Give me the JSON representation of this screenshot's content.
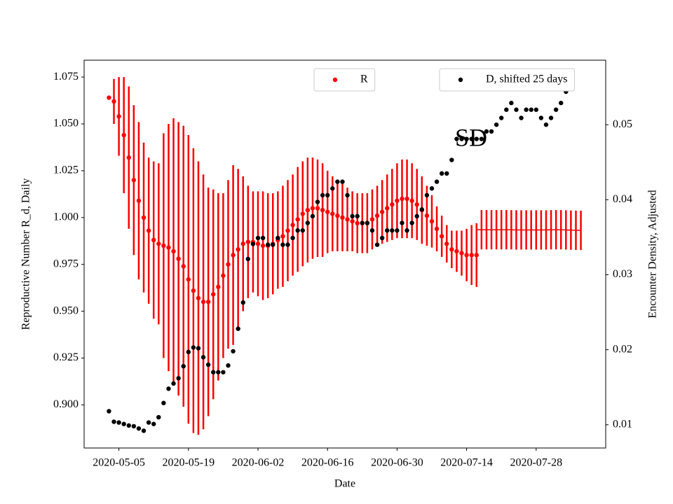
{
  "chart_data": {
    "type": "errorbar",
    "xlabel": "Date",
    "ylabel": "Reproductive Number R_d, Daily",
    "y2label": "Encounter Density, Adjusted",
    "annotations": [
      "SD"
    ],
    "x": [
      "2020-05-03",
      "2020-05-04",
      "2020-05-05",
      "2020-05-06",
      "2020-05-07",
      "2020-05-08",
      "2020-05-09",
      "2020-05-10",
      "2020-05-11",
      "2020-05-12",
      "2020-05-13",
      "2020-05-14",
      "2020-05-15",
      "2020-05-16",
      "2020-05-17",
      "2020-05-18",
      "2020-05-19",
      "2020-05-20",
      "2020-05-21",
      "2020-05-22",
      "2020-05-23",
      "2020-05-24",
      "2020-05-25",
      "2020-05-26",
      "2020-05-27",
      "2020-05-28",
      "2020-05-29",
      "2020-05-30",
      "2020-05-31",
      "2020-06-01",
      "2020-06-02",
      "2020-06-03",
      "2020-06-04",
      "2020-06-05",
      "2020-06-06",
      "2020-06-07",
      "2020-06-08",
      "2020-06-09",
      "2020-06-10",
      "2020-06-11",
      "2020-06-12",
      "2020-06-13",
      "2020-06-14",
      "2020-06-15",
      "2020-06-16",
      "2020-06-17",
      "2020-06-18",
      "2020-06-19",
      "2020-06-20",
      "2020-06-21",
      "2020-06-22",
      "2020-06-23",
      "2020-06-24",
      "2020-06-25",
      "2020-06-26",
      "2020-06-27",
      "2020-06-28",
      "2020-06-29",
      "2020-06-30",
      "2020-07-01",
      "2020-07-02",
      "2020-07-03",
      "2020-07-04",
      "2020-07-05",
      "2020-07-06",
      "2020-07-07",
      "2020-07-08",
      "2020-07-09",
      "2020-07-10",
      "2020-07-11",
      "2020-07-12",
      "2020-07-13",
      "2020-07-14",
      "2020-07-15",
      "2020-07-16",
      "2020-07-17",
      "2020-07-18",
      "2020-07-19",
      "2020-07-20",
      "2020-07-21",
      "2020-07-22",
      "2020-07-23",
      "2020-07-24",
      "2020-07-25",
      "2020-07-26",
      "2020-07-27",
      "2020-07-28",
      "2020-07-29",
      "2020-07-30",
      "2020-07-31",
      "2020-08-01",
      "2020-08-02",
      "2020-08-03",
      "2020-08-04",
      "2020-08-05",
      "2020-08-06"
    ],
    "xlim": [
      "2020-04-28",
      "2020-08-11"
    ],
    "xticks": [
      "2020-05-05",
      "2020-05-19",
      "2020-06-02",
      "2020-06-16",
      "2020-06-30",
      "2020-07-14",
      "2020-07-28"
    ],
    "ylim": [
      0.877,
      1.084
    ],
    "yticks": [
      {
        "value": 0.9,
        "label": "0.900"
      },
      0.925,
      {
        "value": 0.95,
        "label": "0.950"
      },
      0.975,
      {
        "value": 1.0,
        "label": "1.000"
      },
      1.025,
      {
        "value": 1.05,
        "label": "1.050"
      },
      1.075
    ],
    "y2lim": [
      0.0069,
      0.0586
    ],
    "y2ticks": [
      0.01,
      0.02,
      0.03,
      0.04,
      0.05
    ],
    "ylabel_color": "#ff0000",
    "series": [
      {
        "name": "R",
        "color": "#ff0000",
        "marker": "o",
        "legend_loc": "upper center",
        "values": [
          1.064,
          1.062,
          1.054,
          1.044,
          1.032,
          1.02,
          1.009,
          1.0,
          0.993,
          0.988,
          0.986,
          0.985,
          0.984,
          0.982,
          0.978,
          0.974,
          0.967,
          0.961,
          0.957,
          0.955,
          0.955,
          0.959,
          0.963,
          0.969,
          0.975,
          0.98,
          0.983,
          0.986,
          0.987,
          0.987,
          0.986,
          0.985,
          0.985,
          0.986,
          0.988,
          0.99,
          0.993,
          0.996,
          0.999,
          1.002,
          1.004,
          1.005,
          1.005,
          1.004,
          1.003,
          1.002,
          1.001,
          1.0,
          0.999,
          0.998,
          0.997,
          0.997,
          0.997,
          0.999,
          1.001,
          1.003,
          1.005,
          1.007,
          1.009,
          1.01,
          1.01,
          1.009,
          1.007,
          1.004,
          1.001,
          0.998,
          0.994,
          0.99,
          0.986,
          0.983,
          0.982,
          0.981,
          0.98,
          0.98,
          0.98,
          null,
          null,
          null,
          null,
          null,
          null,
          null,
          null,
          null,
          null,
          null,
          null,
          null,
          null,
          null,
          null,
          null,
          null,
          null,
          null,
          null
        ],
        "errors": [
          0,
          0.012,
          0.021,
          0.031,
          0.038,
          0.04,
          0.042,
          0.04,
          0.039,
          0.042,
          0.043,
          0.06,
          0.066,
          0.071,
          0.073,
          0.075,
          0.077,
          0.076,
          0.073,
          0.068,
          0.061,
          0.056,
          0.05,
          0.044,
          0.045,
          0.048,
          0.043,
          0.036,
          0.03,
          0.027,
          0.028,
          0.029,
          0.028,
          0.027,
          0.026,
          0.027,
          0.027,
          0.027,
          0.028,
          0.028,
          0.028,
          0.027,
          0.026,
          0.025,
          0.022,
          0.02,
          0.019,
          0.018,
          0.017,
          0.016,
          0.016,
          0.016,
          0.016,
          0.016,
          0.016,
          0.017,
          0.018,
          0.019,
          0.02,
          0.021,
          0.021,
          0.02,
          0.019,
          0.018,
          0.016,
          0.014,
          0.012,
          0.011,
          0.01,
          0.01,
          0.011,
          0.012,
          0.014,
          0.016,
          0.017,
          null,
          null,
          null,
          null,
          null,
          null,
          null,
          null,
          null,
          null,
          null,
          null,
          null,
          null,
          null,
          null,
          null,
          null,
          null,
          null,
          null
        ]
      },
      {
        "color": "#ff0000",
        "marker": null,
        "linestyle": "-",
        "values": [
          null,
          null,
          null,
          null,
          null,
          null,
          null,
          null,
          null,
          null,
          null,
          null,
          null,
          null,
          null,
          null,
          null,
          null,
          null,
          null,
          null,
          null,
          null,
          null,
          null,
          null,
          null,
          null,
          null,
          null,
          null,
          null,
          null,
          null,
          null,
          null,
          null,
          null,
          null,
          null,
          null,
          null,
          null,
          null,
          null,
          null,
          null,
          null,
          null,
          null,
          null,
          null,
          null,
          null,
          null,
          null,
          null,
          null,
          null,
          null,
          null,
          null,
          null,
          null,
          null,
          null,
          null,
          null,
          null,
          null,
          null,
          null,
          null,
          null,
          0.9935,
          0.9935,
          0.9935,
          0.9935,
          0.9935,
          0.9935,
          0.9935,
          0.9935,
          0.9934,
          0.9934,
          0.9934,
          0.9934,
          0.9934,
          0.9934,
          0.9934,
          0.9935,
          0.9935,
          0.9935,
          0.9934,
          0.9933,
          0.9932,
          0.9932
        ],
        "errors": [
          null,
          null,
          null,
          null,
          null,
          null,
          null,
          null,
          null,
          null,
          null,
          null,
          null,
          null,
          null,
          null,
          null,
          null,
          null,
          null,
          null,
          null,
          null,
          null,
          null,
          null,
          null,
          null,
          null,
          null,
          null,
          null,
          null,
          null,
          null,
          null,
          null,
          null,
          null,
          null,
          null,
          null,
          null,
          null,
          null,
          null,
          null,
          null,
          null,
          null,
          null,
          null,
          null,
          null,
          null,
          null,
          null,
          null,
          null,
          null,
          null,
          null,
          null,
          null,
          null,
          null,
          null,
          null,
          null,
          null,
          null,
          null,
          null,
          null,
          null,
          0.0105,
          0.0105,
          0.0105,
          0.0105,
          0.0105,
          0.0105,
          0.0105,
          0.0105,
          0.0105,
          0.0105,
          0.0105,
          0.0105,
          0.0105,
          0.0105,
          0.0105,
          0.0105,
          0.0105,
          0.0105,
          0.0105,
          0.0105,
          0.0105
        ]
      },
      {
        "name": "D, shifted 25 days",
        "color": "#000000",
        "marker": "o",
        "axis": "y2",
        "legend_loc": "upper right",
        "values": [
          0.0118,
          0.0104,
          0.0103,
          0.0101,
          0.0099,
          0.0098,
          0.0095,
          0.0092,
          0.0103,
          0.0101,
          0.011,
          0.0129,
          0.0148,
          0.0155,
          0.0162,
          0.0178,
          0.0197,
          0.0203,
          0.0202,
          0.019,
          0.018,
          0.017,
          0.017,
          0.017,
          0.0179,
          0.0198,
          0.0228,
          0.0263,
          0.0321,
          0.0341,
          0.0349,
          0.0349,
          0.034,
          0.034,
          0.0349,
          0.034,
          0.034,
          0.0349,
          0.0359,
          0.0359,
          0.0369,
          0.0378,
          0.0397,
          0.0406,
          0.0406,
          0.0415,
          0.0424,
          0.0424,
          0.0406,
          0.0378,
          0.0378,
          0.0369,
          0.0369,
          0.0359,
          0.034,
          0.0349,
          0.0359,
          0.0359,
          0.0359,
          0.0369,
          0.0359,
          0.0369,
          0.0378,
          0.0387,
          0.0406,
          0.0415,
          0.0424,
          0.0435,
          0.0435,
          0.0453,
          0.0481,
          0.0481,
          0.0481,
          0.0481,
          0.0481,
          0.0481,
          0.0491,
          0.0491,
          0.05,
          0.0509,
          0.052,
          0.0529,
          0.052,
          0.0509,
          0.052,
          0.052,
          0.052,
          0.0509,
          0.05,
          0.0509,
          0.052,
          0.0529,
          0.0544,
          0.0567,
          null,
          null
        ]
      }
    ]
  }
}
